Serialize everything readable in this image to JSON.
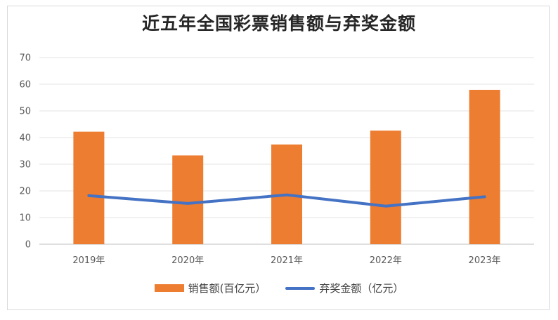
{
  "chart_data": {
    "type": "bar",
    "title": "近五年全国彩票销售额与弃奖金额",
    "categories": [
      "2019年",
      "2020年",
      "2021年",
      "2022年",
      "2023年"
    ],
    "series": [
      {
        "name": "销售额(百亿元）",
        "type": "bar",
        "values": [
          42.2,
          33.3,
          37.4,
          42.6,
          57.9
        ],
        "color": "#ed7d31"
      },
      {
        "name": "弃奖金额（亿元）",
        "type": "line",
        "values": [
          18.2,
          15.3,
          18.5,
          14.3,
          17.8
        ],
        "color": "#4472c4"
      }
    ],
    "ylim": [
      0,
      70
    ],
    "yticks": [
      "0",
      "10",
      "20",
      "30",
      "40",
      "50",
      "60",
      "70"
    ],
    "grid": true,
    "legend": "bottom"
  }
}
